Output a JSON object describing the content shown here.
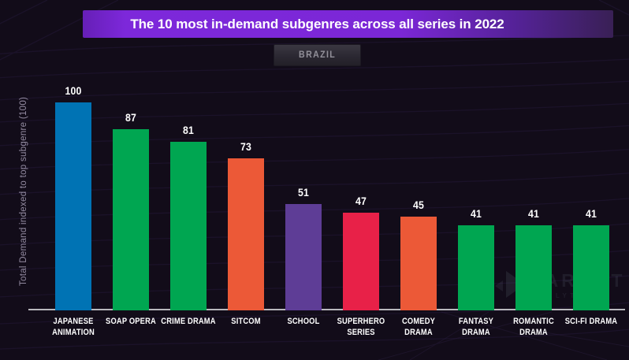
{
  "title": {
    "prefix": "The 10 most in-demand ",
    "highlight": "subgenres",
    "suffix": " across all series in 2022"
  },
  "filter": {
    "label": "BRAZIL"
  },
  "y_axis_label": "Total Demand indexed to top subgenre (100)",
  "watermark": {
    "name": "PARROT",
    "subname": "ANALYTICS"
  },
  "colors": {
    "background": "#120c19",
    "banner_purple": "#7b27d6",
    "axis_line": "#b9b8bd",
    "label_text": "#ffffff",
    "y_label_text": "#948ca2",
    "filter_text": "#93919a"
  },
  "chart_data": {
    "type": "bar",
    "title": "The 10 most in-demand subgenres across all series in 2022",
    "region_filter": "Brazil",
    "xlabel": "",
    "ylabel": "Total Demand indexed to top subgenre (100)",
    "ylim": [
      0,
      100
    ],
    "grid": false,
    "legend": "none",
    "categories": [
      "Japanese Animation",
      "Soap Opera",
      "Crime Drama",
      "Sitcom",
      "School",
      "Superhero Series",
      "Comedy Drama",
      "Fantasy Drama",
      "Romantic Drama",
      "Sci-Fi Drama"
    ],
    "categories_display": [
      [
        "JAPANESE",
        "ANIMATION"
      ],
      [
        "SOAP OPERA"
      ],
      [
        "CRIME DRAMA"
      ],
      [
        "SITCOM"
      ],
      [
        "SCHOOL"
      ],
      [
        "SUPERHERO",
        "SERIES"
      ],
      [
        "COMEDY",
        "DRAMA"
      ],
      [
        "FANTASY",
        "DRAMA"
      ],
      [
        "ROMANTIC",
        "DRAMA"
      ],
      [
        "SCI-FI DRAMA"
      ]
    ],
    "values": [
      100,
      87,
      81,
      73,
      51,
      47,
      45,
      41,
      41,
      41
    ],
    "bar_colors": [
      "#0073b4",
      "#00a651",
      "#00a651",
      "#ec5937",
      "#5e3d96",
      "#e82148",
      "#ec5937",
      "#00a651",
      "#00a651",
      "#00a651"
    ]
  }
}
